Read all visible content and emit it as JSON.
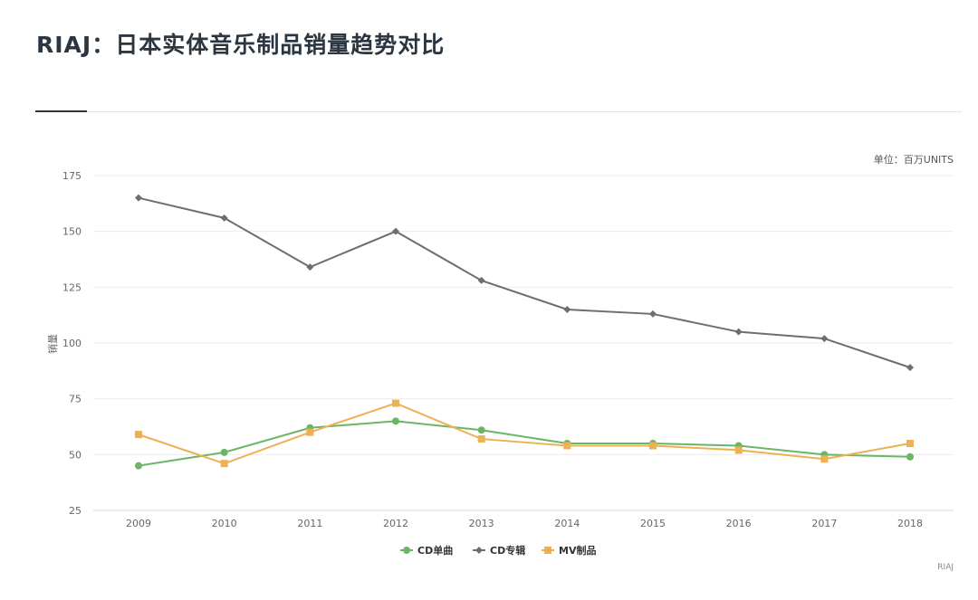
{
  "title": "RIAJ：日本实体音乐制品销量趋势对比",
  "chart_data": {
    "type": "line",
    "title": "RIAJ：日本实体音乐制品销量趋势对比",
    "unit_label": "单位：百万UNITS",
    "xlabel": "",
    "ylabel": "销量",
    "categories": [
      "2009",
      "2010",
      "2011",
      "2012",
      "2013",
      "2014",
      "2015",
      "2016",
      "2017",
      "2018"
    ],
    "ylim": [
      25,
      175
    ],
    "yticks": [
      25,
      50,
      75,
      100,
      125,
      150,
      175
    ],
    "grid": true,
    "legend_position": "bottom",
    "series": [
      {
        "name": "CD单曲",
        "color": "#6ab664",
        "marker": "circle",
        "values": [
          45,
          51,
          62,
          65,
          61,
          55,
          55,
          54,
          50,
          49
        ]
      },
      {
        "name": "CD专辑",
        "color": "#6e6e6e",
        "marker": "diamond",
        "values": [
          165,
          156,
          134,
          150,
          128,
          115,
          113,
          105,
          102,
          89
        ]
      },
      {
        "name": "MV制品",
        "color": "#eeb055",
        "marker": "square",
        "values": [
          59,
          46,
          60,
          73,
          57,
          54,
          54,
          52,
          48,
          55
        ]
      }
    ],
    "source": "RIAJ"
  }
}
